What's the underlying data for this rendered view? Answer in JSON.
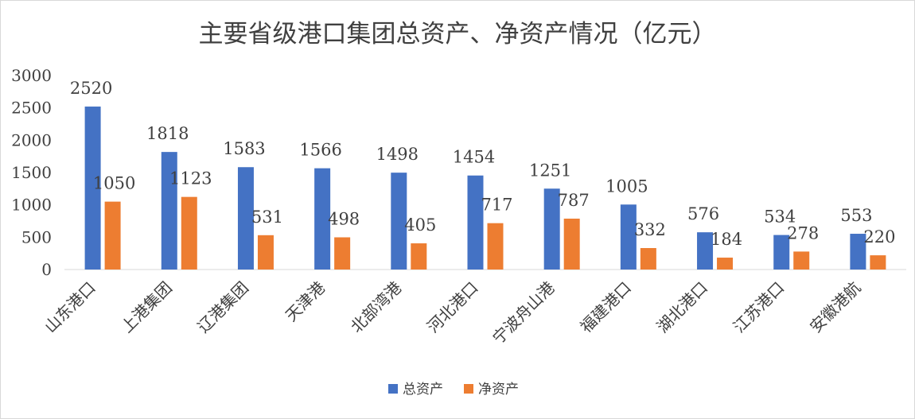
{
  "chart_data": {
    "type": "bar",
    "title": "主要省级港口集团总资产、净资产情况（亿元）",
    "categories": [
      "山东港口",
      "上港集团",
      "辽港集团",
      "天津港",
      "北部湾港",
      "河北港口",
      "宁波舟山港",
      "福建港口",
      "湖北港口",
      "江苏港口",
      "安徽港航"
    ],
    "series": [
      {
        "name": "总资产",
        "color": "#4472C4",
        "values": [
          2520,
          1818,
          1583,
          1566,
          1498,
          1454,
          1251,
          1005,
          576,
          534,
          553
        ]
      },
      {
        "name": "净资产",
        "color": "#ED7D31",
        "values": [
          1050,
          1123,
          531,
          498,
          405,
          717,
          787,
          332,
          184,
          278,
          220
        ]
      }
    ],
    "yticks": [
      "0",
      "500",
      "1000",
      "1500",
      "2000",
      "2500",
      "3000"
    ],
    "ylim": [
      0,
      3000
    ],
    "legend_position": "bottom",
    "grid": false
  }
}
